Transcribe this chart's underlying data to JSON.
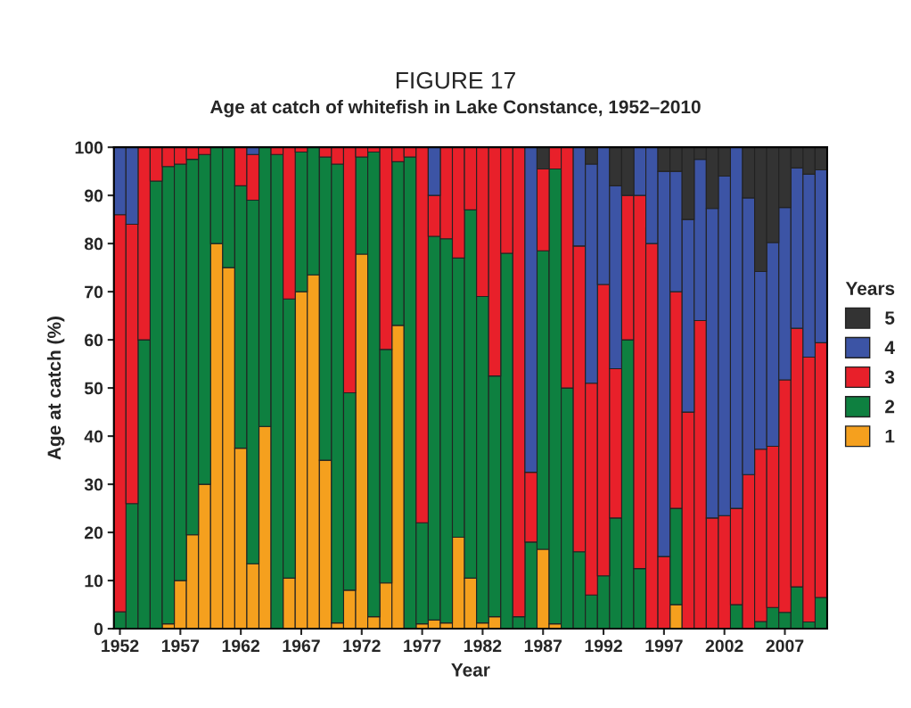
{
  "chart_data": {
    "type": "bar",
    "stacked": true,
    "title": "FIGURE 17",
    "subtitle": "Age at catch of whitefish in Lake Constance, 1952–2010",
    "xlabel": "Year",
    "ylabel": "Age at catch (%)",
    "legend_title": "Years",
    "legend": "right",
    "x": [
      1952,
      1953,
      1954,
      1955,
      1956,
      1957,
      1958,
      1959,
      1960,
      1961,
      1962,
      1963,
      1964,
      1965,
      1966,
      1967,
      1968,
      1969,
      1970,
      1971,
      1972,
      1973,
      1974,
      1975,
      1976,
      1977,
      1978,
      1979,
      1980,
      1981,
      1982,
      1983,
      1984,
      1985,
      1986,
      1987,
      1988,
      1989,
      1990,
      1991,
      1992,
      1993,
      1994,
      1995,
      1996,
      1997,
      1998,
      1999,
      2000,
      2001,
      2002,
      2003,
      2004,
      2005,
      2006,
      2007,
      2008,
      2009,
      2010
    ],
    "xlim": [
      1951.5,
      2010.5
    ],
    "xticks": [
      1952,
      1957,
      1962,
      1967,
      1972,
      1977,
      1982,
      1987,
      1992,
      1997,
      2002,
      2007
    ],
    "ylim": [
      0,
      100
    ],
    "yticks": [
      0,
      10,
      20,
      30,
      40,
      50,
      60,
      70,
      80,
      90,
      100
    ],
    "series": [
      {
        "name": "1",
        "color": "#f5a01e",
        "values": [
          0,
          0,
          0,
          0,
          1,
          10,
          19.5,
          30,
          80,
          75,
          37.5,
          13.5,
          42,
          0,
          10.5,
          70,
          73.5,
          35,
          1.2,
          8,
          77.8,
          2.5,
          9.5,
          63,
          0,
          1,
          1.8,
          1.2,
          19,
          10.5,
          1.2,
          2.5,
          0,
          0,
          0,
          16.5,
          1,
          0,
          0,
          0,
          0,
          0,
          0,
          0,
          0,
          0,
          5,
          0,
          0,
          0,
          0,
          0,
          0,
          0,
          0,
          0,
          0,
          0,
          0
        ]
      },
      {
        "name": "2",
        "color": "#0e8040",
        "values": [
          3.5,
          26,
          60,
          93,
          95,
          86.5,
          78,
          68.5,
          20,
          25,
          54.5,
          75.5,
          58,
          98.5,
          58,
          29,
          26.5,
          63,
          95.3,
          41,
          20.2,
          96.5,
          48.5,
          34,
          98,
          21,
          79.7,
          79.8,
          58,
          76.5,
          67.8,
          50,
          78,
          2.5,
          18,
          62,
          94.5,
          50,
          16,
          7,
          11,
          23,
          60,
          12.5,
          0,
          0,
          20,
          0,
          0,
          0,
          0,
          5,
          0,
          1.5,
          4.4,
          3.4,
          8.7,
          1.4,
          6.5
        ]
      },
      {
        "name": "3",
        "color": "#e8202a",
        "values": [
          82.5,
          58,
          40,
          7,
          4,
          3.5,
          2.5,
          1.5,
          0,
          0,
          8,
          9.5,
          0,
          1.5,
          31.5,
          1,
          0,
          2,
          3.5,
          51,
          2,
          1,
          42,
          3,
          2,
          78,
          8.5,
          19,
          23,
          13,
          31,
          47.5,
          22,
          97.5,
          14.5,
          17,
          4.5,
          50,
          63.5,
          44,
          60.5,
          31,
          30,
          77.5,
          80,
          15,
          45,
          45,
          64,
          23,
          23.5,
          20,
          32,
          35.8,
          33.5,
          48.3,
          53.7,
          55,
          52.9
        ]
      },
      {
        "name": "4",
        "color": "#3c54a5",
        "values": [
          14,
          16,
          0,
          0,
          0,
          0,
          0,
          0,
          0,
          0,
          0,
          1.5,
          0,
          0,
          0,
          0,
          0,
          0,
          0,
          0,
          0,
          0,
          0,
          0,
          0,
          0,
          10,
          0,
          0,
          0,
          0,
          0,
          0,
          0,
          67.5,
          0,
          0,
          0,
          20.5,
          45.5,
          28.5,
          38,
          0,
          10,
          20,
          80,
          25,
          40,
          33.5,
          64.3,
          70.5,
          75,
          57.5,
          36.9,
          42.3,
          35.8,
          33.3,
          38,
          35.9
        ]
      },
      {
        "name": "5",
        "color": "#333333",
        "values": [
          0,
          0,
          0,
          0,
          0,
          0,
          0,
          0,
          0,
          0,
          0,
          0,
          0,
          0,
          0,
          0,
          0,
          0,
          0,
          0,
          0,
          0,
          0,
          0,
          0,
          0,
          0,
          0,
          0,
          0,
          0,
          0,
          0,
          0,
          0,
          4.5,
          0,
          0,
          0,
          3.5,
          0,
          8,
          10,
          0,
          0,
          5,
          5,
          15,
          2.5,
          12.7,
          6,
          0,
          10.5,
          25.8,
          19.8,
          12.5,
          4.3,
          5.6,
          4.7
        ]
      }
    ]
  }
}
